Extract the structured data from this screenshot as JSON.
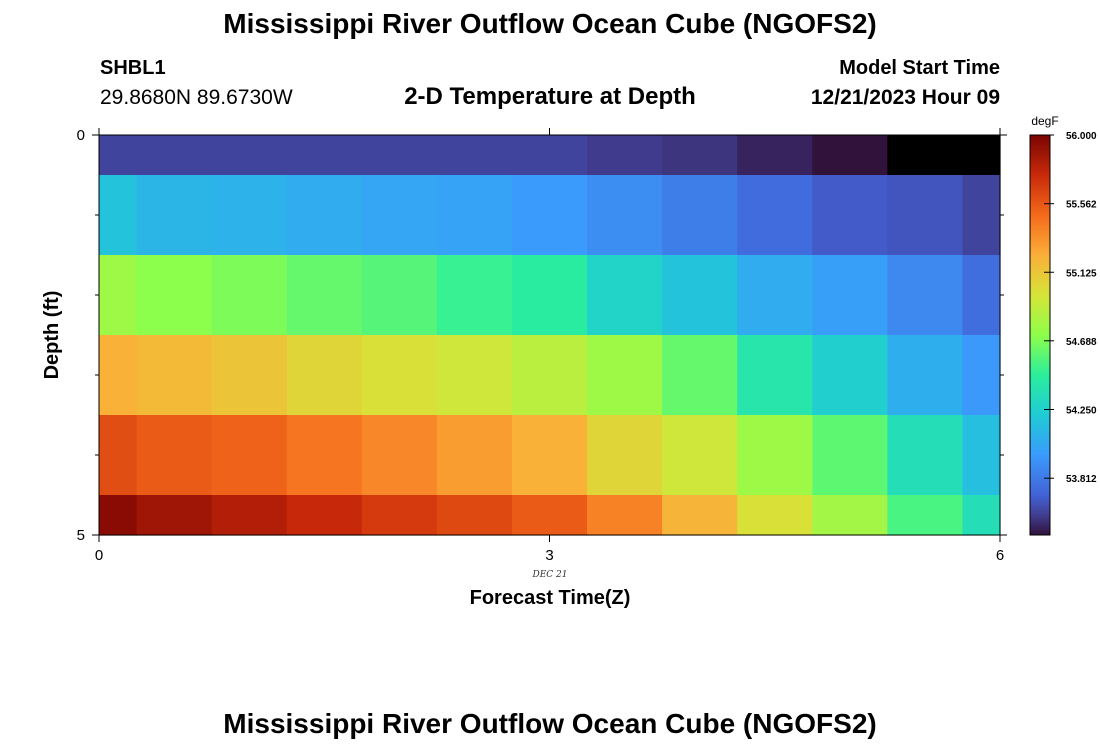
{
  "header": {
    "title": "Mississippi River Outflow Ocean Cube (NGOFS2)",
    "station_id": "SHBL1",
    "station_coords": "29.8680N  89.6730W",
    "subtitle": "2-D Temperature at Depth",
    "model_start_label": "Model Start Time",
    "model_start_time": "12/21/2023 Hour 09"
  },
  "footer": {
    "title": "Mississippi River Outflow Ocean Cube (NGOFS2)"
  },
  "chart_data": {
    "type": "heatmap",
    "title": "2-D Temperature at Depth",
    "xlabel": "Forecast Time(Z)",
    "ylabel": "Depth (ft)",
    "x_tick_labels": [
      "0",
      "3",
      "6"
    ],
    "x_sub_label": "DEC 21",
    "y_tick_labels": [
      "0",
      "5"
    ],
    "xlim": [
      0,
      6
    ],
    "ylim": [
      0,
      5
    ],
    "colorbar": {
      "unit": "degF",
      "min": 53.45,
      "max": 56.0,
      "tick_labels": [
        "56.000",
        "55.562",
        "55.125",
        "54.688",
        "54.250",
        "53.812"
      ],
      "tick_values": [
        56.0,
        55.562,
        55.125,
        54.688,
        54.25,
        53.812
      ]
    },
    "x_edges": [
      0,
      0.25,
      0.75,
      1.25,
      1.75,
      2.25,
      2.75,
      3.25,
      3.75,
      4.25,
      4.75,
      5.25,
      5.75,
      6
    ],
    "depth_edges": [
      0,
      0.5,
      1.5,
      2.5,
      3.5,
      4.5,
      5
    ],
    "values": [
      [
        53.6,
        53.6,
        53.6,
        53.6,
        53.6,
        53.6,
        53.6,
        53.57,
        53.55,
        53.5,
        53.45,
        53.38,
        53.3
      ],
      [
        54.18,
        54.1,
        54.08,
        54.05,
        54.02,
        54.0,
        53.96,
        53.9,
        53.83,
        53.75,
        53.68,
        53.66,
        53.6
      ],
      [
        54.78,
        54.72,
        54.68,
        54.62,
        54.58,
        54.5,
        54.45,
        54.28,
        54.18,
        54.05,
        53.98,
        53.88,
        53.76
      ],
      [
        55.22,
        55.18,
        55.13,
        55.05,
        55.0,
        54.95,
        54.88,
        54.78,
        54.62,
        54.4,
        54.25,
        54.06,
        53.95
      ],
      [
        55.6,
        55.55,
        55.52,
        55.45,
        55.38,
        55.3,
        55.22,
        55.05,
        54.95,
        54.78,
        54.6,
        54.35,
        54.15
      ],
      [
        55.95,
        55.88,
        55.82,
        55.75,
        55.68,
        55.62,
        55.55,
        55.4,
        55.2,
        55.0,
        54.8,
        54.55,
        54.35
      ]
    ]
  }
}
